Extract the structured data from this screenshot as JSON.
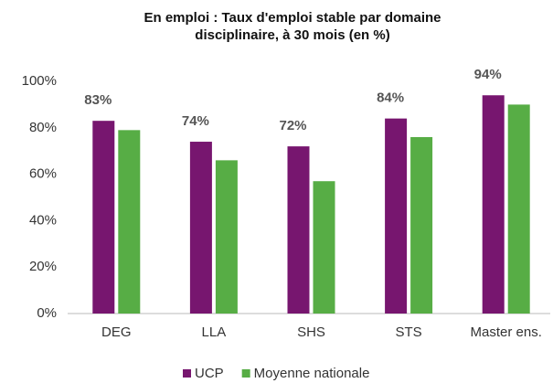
{
  "chart_data": {
    "type": "bar",
    "title": [
      "En emploi :  Taux d'emploi stable par domaine",
      "disciplinaire, à 30 mois (en %)"
    ],
    "categories": [
      "DEG",
      "LLA",
      "SHS",
      "STS",
      "Master ens."
    ],
    "series": [
      {
        "name": "UCP",
        "color": "#77166f",
        "values": [
          83,
          74,
          72,
          84,
          94
        ],
        "value_labels": [
          "83%",
          "74%",
          "72%",
          "84%",
          "94%"
        ]
      },
      {
        "name": "Moyenne nationale",
        "color": "#57ad45",
        "values": [
          79,
          66,
          57,
          76,
          90
        ]
      }
    ],
    "ylim": [
      0,
      100
    ],
    "yticks": [
      {
        "value": 0,
        "label": "0%"
      },
      {
        "value": 20,
        "label": "20%"
      },
      {
        "value": 40,
        "label": "40%"
      },
      {
        "value": 60,
        "label": "60%"
      },
      {
        "value": 80,
        "label": "80%"
      },
      {
        "value": 100,
        "label": "100%"
      }
    ],
    "grid": false,
    "legend": "bottom"
  }
}
